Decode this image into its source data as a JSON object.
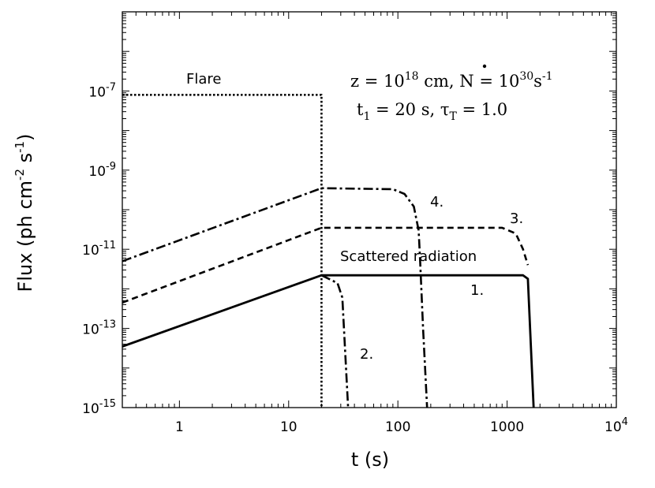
{
  "chart_data": {
    "type": "line",
    "xscale": "log",
    "yscale": "log",
    "xlim": [
      0.3,
      10000
    ],
    "ylim": [
      1e-15,
      1e-05
    ],
    "xlabel": "t (s)",
    "ylabel": {
      "main": "Flux (ph cm",
      "sup1": "-2",
      "mid": " s",
      "sup2": "-1",
      "close": ")"
    },
    "x_tick_labels": [
      {
        "value": 1,
        "label": "1"
      },
      {
        "value": 10,
        "label": "10"
      },
      {
        "value": 100,
        "label": "100"
      },
      {
        "value": 1000,
        "label": "1000"
      },
      {
        "value": 10000,
        "base": "10",
        "exp": "4"
      }
    ],
    "y_tick_labels": [
      {
        "value": 1e-07,
        "base": "10",
        "exp": "-7"
      },
      {
        "value": 1e-09,
        "base": "10",
        "exp": "-9"
      },
      {
        "value": 1e-11,
        "base": "10",
        "exp": "-11"
      },
      {
        "value": 1e-13,
        "base": "10",
        "exp": "-13"
      },
      {
        "value": 1e-15,
        "base": "10",
        "exp": "-15"
      }
    ],
    "info_line1": {
      "a": "z = 10",
      "a_sup": "18",
      "b": " cm, ",
      "n": "N",
      "c": " = 10",
      "c_sup": "30",
      "d": "s",
      "d_sup": "-1"
    },
    "info_line2": {
      "a": "t",
      "a_sub": "1",
      "b": " = 20 s, ",
      "tau": "τ",
      "tau_sub": "T",
      "c": " = 1.0"
    },
    "labels": {
      "flare": "Flare",
      "scattered": "Scattered  radiation",
      "c1": "1.",
      "c2": "2.",
      "c3": "3.",
      "c4": "4."
    },
    "series": [
      {
        "name": "Flare",
        "style": "dotted",
        "points": [
          [
            0.3,
            8e-08
          ],
          [
            20,
            8e-08
          ],
          [
            20,
            1e-15
          ]
        ]
      },
      {
        "name": "1.",
        "style": "solid",
        "points": [
          [
            0.3,
            3.5e-14
          ],
          [
            20,
            2.2e-12
          ],
          [
            1400,
            2.2e-12
          ],
          [
            1550,
            1.8e-12
          ],
          [
            1750,
            1e-15
          ]
        ]
      },
      {
        "name": "2.",
        "style": "dash-dot",
        "points": [
          [
            20,
            2.2e-12
          ],
          [
            28,
            1.4e-12
          ],
          [
            31,
            6e-13
          ],
          [
            35,
            1e-15
          ]
        ]
      },
      {
        "name": "3.",
        "style": "dashed",
        "points": [
          [
            0.3,
            4.5e-13
          ],
          [
            20,
            3.5e-11
          ],
          [
            900,
            3.5e-11
          ],
          [
            1200,
            2.5e-11
          ],
          [
            1400,
            1e-11
          ],
          [
            1550,
            4e-12
          ]
        ]
      },
      {
        "name": "4.",
        "style": "dash-dot",
        "points": [
          [
            0.3,
            5e-12
          ],
          [
            20,
            3.5e-10
          ],
          [
            90,
            3.3e-10
          ],
          [
            115,
            2.5e-10
          ],
          [
            140,
            1.2e-10
          ],
          [
            155,
            3e-11
          ],
          [
            160,
            5e-12
          ],
          [
            170,
            1e-13
          ],
          [
            185,
            1e-15
          ]
        ]
      }
    ]
  }
}
